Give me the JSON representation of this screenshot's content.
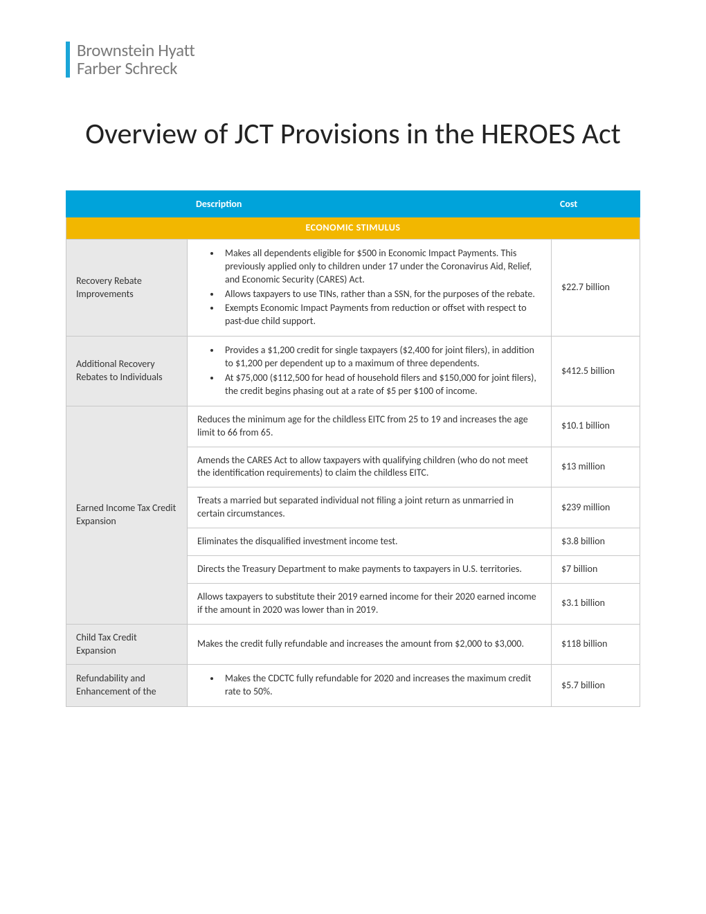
{
  "logo": {
    "line1": "Brownstein Hyatt",
    "line2": "Farber Schreck",
    "bar_color": "#1ba5d8",
    "text_color": "#7a7a7a"
  },
  "title": "Overview of JCT Provisions in the HEROES Act",
  "colors": {
    "header_bg": "#00a3da",
    "header_text": "#ffffff",
    "section_bg": "#f2b700",
    "section_text": "#ffffff",
    "name_cell_bg": "#e8e8e8",
    "border": "#c7c7c7"
  },
  "table": {
    "headers": {
      "description": "Description",
      "cost": "Cost"
    },
    "section_label": "ECONOMIC  STIMULUS",
    "rows": [
      {
        "name": "Recovery Rebate Improvements",
        "bullets": [
          "Makes all dependents eligible for $500 in Economic Impact Payments. This previously applied only to children under 17 under the Coronavirus Aid, Relief, and Economic Security (CARES) Act.",
          "Allows taxpayers to use TINs, rather than a SSN, for the purposes of the rebate.",
          "Exempts Economic Impact Payments from reduction or offset with respect to past-due child support."
        ],
        "cost": "$22.7 billion"
      },
      {
        "name": "Additional Recovery Rebates to Individuals",
        "bullets": [
          "Provides a $1,200 credit for single taxpayers ($2,400 for joint filers), in addition to $1,200 per dependent up to a maximum of three dependents.",
          "At $75,000 ($112,500 for head of household filers and $150,000 for joint filers), the credit begins phasing out at a rate of $5 per $100 of income."
        ],
        "cost": "$412.5 billion"
      },
      {
        "group_name": "Earned Income Tax Credit Expansion",
        "subs": [
          {
            "desc": "Reduces the minimum age for the childless EITC from 25 to 19 and increases the age limit to 66 from 65.",
            "cost": "$10.1 billion"
          },
          {
            "desc": "Amends the CARES Act to allow taxpayers with qualifying children (who do not meet the identification requirements) to claim the childless EITC.",
            "cost": "$13 million"
          },
          {
            "desc": "Treats a married but separated individual not filing a joint return as unmarried in certain circumstances.",
            "cost": "$239 million"
          },
          {
            "desc": "Eliminates the disqualified investment income test.",
            "cost": "$3.8 billion"
          },
          {
            "desc": "Directs the Treasury Department to make payments to taxpayers in U.S. territories.",
            "cost": "$7 billion"
          },
          {
            "desc": "Allows taxpayers to substitute their 2019 earned income for their 2020 earned income if the amount in 2020 was lower than in 2019.",
            "cost": "$3.1 billion"
          }
        ]
      },
      {
        "name": "Child Tax Credit Expansion",
        "plain": "Makes the credit fully refundable and increases the amount from $2,000 to $3,000.",
        "cost": "$118 billion"
      },
      {
        "name": "Refundability and Enhancement of the",
        "bullets": [
          "Makes the CDCTC fully refundable for 2020 and increases the maximum credit rate to 50%."
        ],
        "cost": "$5.7 billion"
      }
    ]
  }
}
